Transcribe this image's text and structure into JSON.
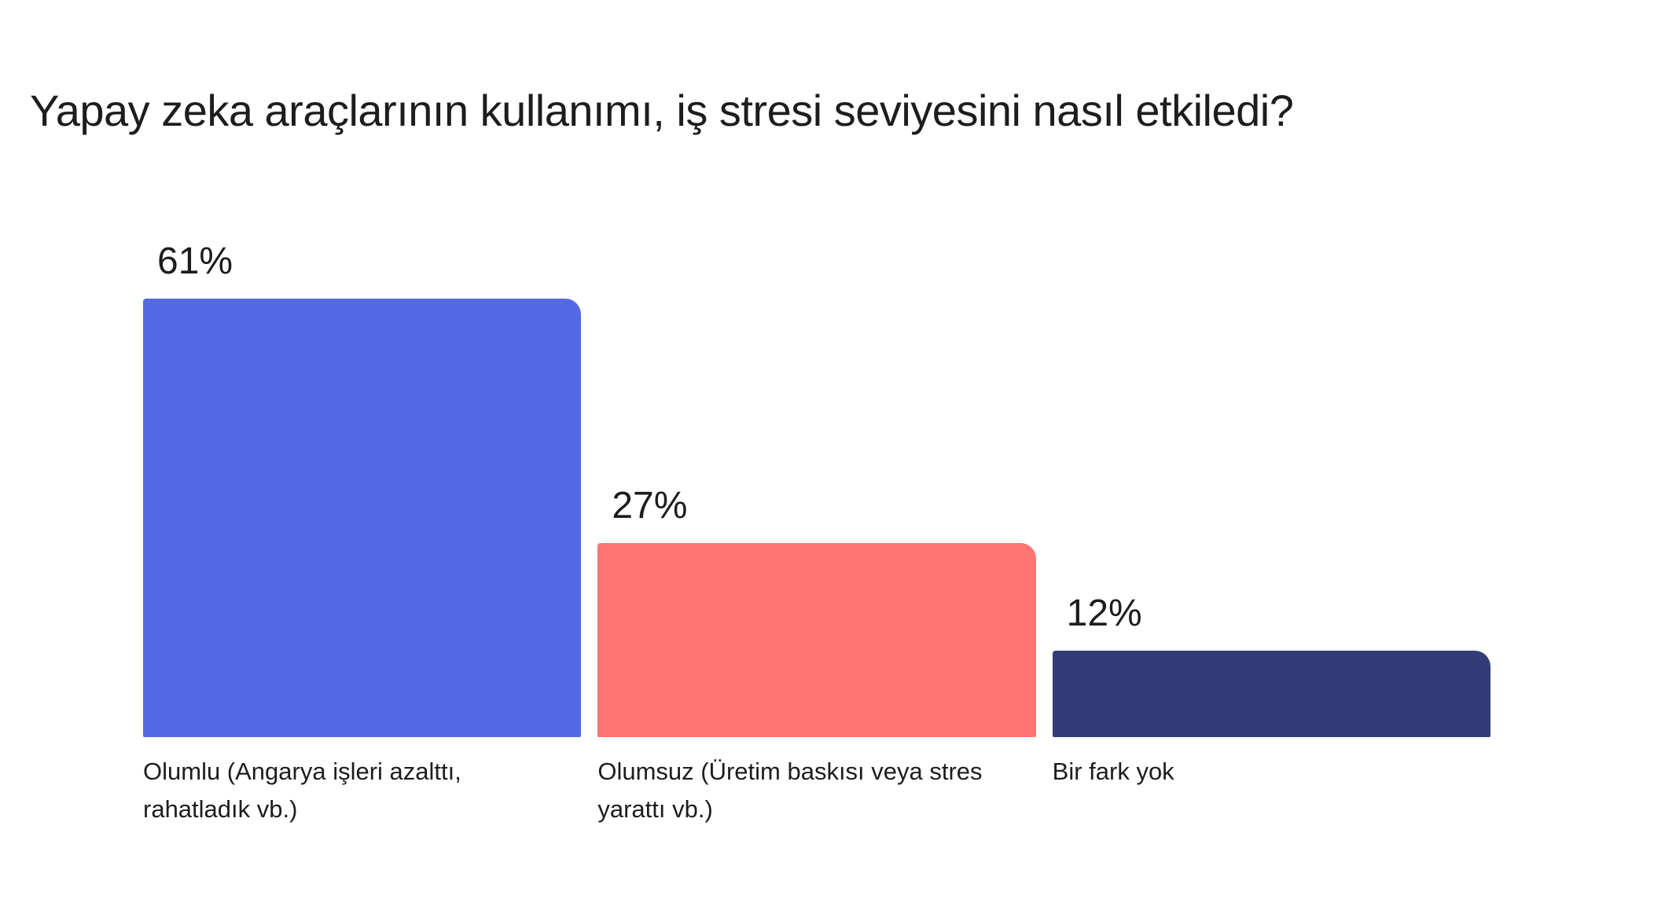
{
  "page": {
    "background": "#ffffff",
    "text_color": "#1d1d1d"
  },
  "chart_data": {
    "type": "bar",
    "orientation": "vertical",
    "title": "Yapay zeka araçlarının kullanımı, iş stresi seviyesini nasıl etkiledi?",
    "xlabel": "",
    "ylabel": "",
    "ylim": [
      0,
      61
    ],
    "grid": false,
    "legend": null,
    "categories": [
      "Olumlu (Angarya işleri azalttı, rahatladık vb.)",
      "Olumsuz (Üretim baskısı veya stres yarattı vb.)",
      "Bir fark yok"
    ],
    "values": [
      61,
      27,
      12
    ],
    "value_labels": [
      "61%",
      "27%",
      "12%"
    ],
    "colors": [
      "#5569e4",
      "#fd7471",
      "#333c78"
    ],
    "categories_display": [
      {
        "line1": "Olumlu (Angarya işleri azalttı,",
        "line2": "rahatladık vb.)"
      },
      {
        "line1": "Olumsuz (Üretim baskısı veya stres",
        "line2": "yarattı vb.)"
      },
      {
        "line1": "Bir fark yok",
        "line2": ""
      }
    ]
  }
}
